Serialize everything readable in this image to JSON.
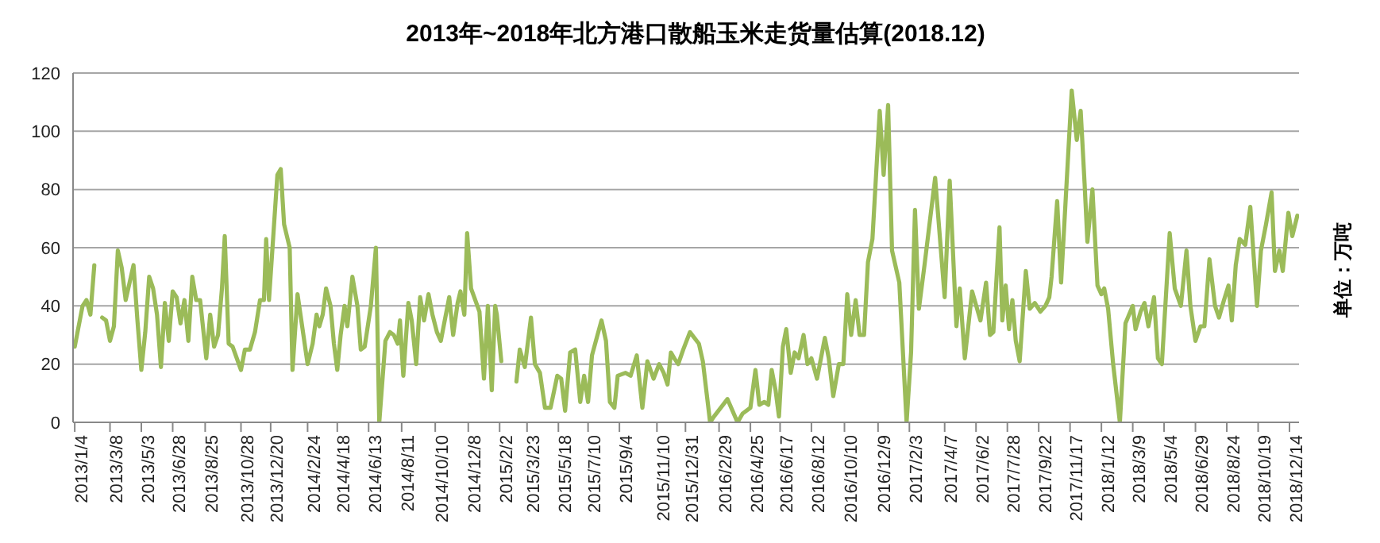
{
  "chart_data": {
    "type": "line",
    "title": "2013年~2018年北方港口散船玉米走货量估算(2018.12)",
    "ylabel": "单位：万吨",
    "xlim": [
      "2013-01-01",
      "2018-12-31"
    ],
    "ylim": [
      0,
      120
    ],
    "yticks": [
      0,
      20,
      40,
      60,
      80,
      100,
      120
    ],
    "xticks": [
      {
        "value": "2013-01-04",
        "label": "2013/1/4"
      },
      {
        "value": "2013-03-08",
        "label": "2013/3/8"
      },
      {
        "value": "2013-05-03",
        "label": "2013/5/3"
      },
      {
        "value": "2013-06-28",
        "label": "2013/6/28"
      },
      {
        "value": "2013-08-25",
        "label": "2013/8/25"
      },
      {
        "value": "2013-10-28",
        "label": "2013/10/28"
      },
      {
        "value": "2013-12-20",
        "label": "2013/12/20"
      },
      {
        "value": "2014-02-24",
        "label": "2014/2/24"
      },
      {
        "value": "2014-04-18",
        "label": "2014/4/18"
      },
      {
        "value": "2014-06-13",
        "label": "2014/6/13"
      },
      {
        "value": "2014-08-11",
        "label": "2014/8/11"
      },
      {
        "value": "2014-10-10",
        "label": "2014/10/10"
      },
      {
        "value": "2014-12-08",
        "label": "2014/12/8"
      },
      {
        "value": "2015-02-02",
        "label": "2015/2/2"
      },
      {
        "value": "2015-03-23",
        "label": "2015/3/23"
      },
      {
        "value": "2015-05-18",
        "label": "2015/5/18"
      },
      {
        "value": "2015-07-10",
        "label": "2015/7/10"
      },
      {
        "value": "2015-09-04",
        "label": "2015/9/4"
      },
      {
        "value": "2015-11-10",
        "label": "2015/11/10"
      },
      {
        "value": "2015-12-31",
        "label": "2015/12/31"
      },
      {
        "value": "2016-02-29",
        "label": "2016/2/29"
      },
      {
        "value": "2016-04-25",
        "label": "2016/4/25"
      },
      {
        "value": "2016-06-17",
        "label": "2016/6/17"
      },
      {
        "value": "2016-08-12",
        "label": "2016/8/12"
      },
      {
        "value": "2016-10-10",
        "label": "2016/10/10"
      },
      {
        "value": "2016-12-09",
        "label": "2016/12/9"
      },
      {
        "value": "2017-02-03",
        "label": "2017/2/3"
      },
      {
        "value": "2017-04-07",
        "label": "2017/4/7"
      },
      {
        "value": "2017-06-02",
        "label": "2017/6/2"
      },
      {
        "value": "2017-07-28",
        "label": "2017/7/28"
      },
      {
        "value": "2017-09-22",
        "label": "2017/9/22"
      },
      {
        "value": "2017-11-17",
        "label": "2017/11/17"
      },
      {
        "value": "2018-01-12",
        "label": "2018/1/12"
      },
      {
        "value": "2018-03-09",
        "label": "2018/3/9"
      },
      {
        "value": "2018-05-04",
        "label": "2018/5/4"
      },
      {
        "value": "2018-06-29",
        "label": "2018/6/29"
      },
      {
        "value": "2018-08-24",
        "label": "2018/8/24"
      },
      {
        "value": "2018-10-19",
        "label": "2018/10/19"
      },
      {
        "value": "2018-12-14",
        "label": "2018/12/14"
      }
    ],
    "grid": "y",
    "marker": "none",
    "line_style": "solid",
    "series": [
      {
        "color": "#9bbb59",
        "x": [
          "2013-01-04",
          "2013-01-18",
          "2013-01-25",
          "2013-02-01",
          "2013-02-08",
          "2013-02-15",
          "2013-02-22",
          "2013-03-01",
          "2013-03-08",
          "2013-03-15",
          "2013-03-22",
          "2013-03-29",
          "2013-04-05",
          "2013-04-12",
          "2013-04-19",
          "2013-04-26",
          "2013-05-03",
          "2013-05-10",
          "2013-05-17",
          "2013-05-24",
          "2013-05-31",
          "2013-06-07",
          "2013-06-14",
          "2013-06-21",
          "2013-06-28",
          "2013-07-05",
          "2013-07-12",
          "2013-07-19",
          "2013-07-26",
          "2013-08-02",
          "2013-08-09",
          "2013-08-16",
          "2013-08-27",
          "2013-09-03",
          "2013-09-10",
          "2013-09-17",
          "2013-09-24",
          "2013-09-29",
          "2013-10-06",
          "2013-10-13",
          "2013-10-28",
          "2013-11-04",
          "2013-11-13",
          "2013-11-22",
          "2013-12-01",
          "2013-12-08",
          "2013-12-12",
          "2013-12-17",
          "2014-01-01",
          "2014-01-07",
          "2014-01-13",
          "2014-01-23",
          "2014-01-28",
          "2014-02-06",
          "2014-02-24",
          "2014-03-05",
          "2014-03-12",
          "2014-03-17",
          "2014-03-23",
          "2014-03-29",
          "2014-04-06",
          "2014-04-12",
          "2014-04-18",
          "2014-04-24",
          "2014-05-01",
          "2014-05-06",
          "2014-05-15",
          "2014-05-24",
          "2014-05-30",
          "2014-06-06",
          "2014-06-17",
          "2014-06-26",
          "2014-07-02",
          "2014-07-13",
          "2014-07-21",
          "2014-07-28",
          "2014-08-04",
          "2014-08-08",
          "2014-08-14",
          "2014-08-23",
          "2014-08-29",
          "2014-09-06",
          "2014-09-13",
          "2014-09-20",
          "2014-09-28",
          "2014-10-05",
          "2014-10-13",
          "2014-10-20",
          "2014-11-04",
          "2014-11-11",
          "2014-11-19",
          "2014-11-24",
          "2014-12-01",
          "2014-12-06",
          "2014-12-13",
          "2014-12-28",
          "2015-01-05",
          "2015-01-12",
          "2015-01-19",
          "2015-01-25",
          "2015-01-28",
          "2015-02-05",
          "2015-02-20",
          "2015-03-04",
          "2015-03-10",
          "2015-03-19",
          "2015-03-30",
          "2015-04-06",
          "2015-04-15",
          "2015-04-24",
          "2015-05-04",
          "2015-05-16",
          "2015-05-23",
          "2015-05-30",
          "2015-06-08",
          "2015-06-17",
          "2015-06-26",
          "2015-07-03",
          "2015-07-10",
          "2015-07-17",
          "2015-07-24",
          "2015-08-03",
          "2015-08-11",
          "2015-08-18",
          "2015-08-26",
          "2015-09-01",
          "2015-09-15",
          "2015-09-24",
          "2015-10-05",
          "2015-10-15",
          "2015-10-24",
          "2015-11-04",
          "2015-11-14",
          "2015-11-22",
          "2015-11-29",
          "2015-12-05",
          "2015-12-11",
          "2015-12-18",
          "2015-12-27",
          "2016-01-08",
          "2016-01-24",
          "2016-01-31",
          "2016-02-13",
          "2016-02-20",
          "2016-03-15",
          "2016-04-02",
          "2016-04-11",
          "2016-04-25",
          "2016-05-04",
          "2016-05-11",
          "2016-05-20",
          "2016-05-27",
          "2016-06-02",
          "2016-06-09",
          "2016-06-15",
          "2016-06-22",
          "2016-06-28",
          "2016-07-06",
          "2016-07-13",
          "2016-07-20",
          "2016-07-29",
          "2016-08-05",
          "2016-08-12",
          "2016-08-22",
          "2016-09-05",
          "2016-09-12",
          "2016-09-20",
          "2016-09-30",
          "2016-10-08",
          "2016-10-15",
          "2016-10-22",
          "2016-10-30",
          "2016-11-06",
          "2016-11-14",
          "2016-11-21",
          "2016-11-29",
          "2016-12-12",
          "2016-12-19",
          "2016-12-27",
          "2017-01-03",
          "2017-01-16",
          "2017-01-29",
          "2017-02-06",
          "2017-02-13",
          "2017-02-20",
          "2017-03-02",
          "2017-03-21",
          "2017-04-07",
          "2017-04-16",
          "2017-04-28",
          "2017-05-04",
          "2017-05-13",
          "2017-05-26",
          "2017-06-10",
          "2017-06-20",
          "2017-06-27",
          "2017-07-03",
          "2017-07-14",
          "2017-07-19",
          "2017-07-25",
          "2017-07-31",
          "2017-08-06",
          "2017-08-12",
          "2017-08-19",
          "2017-08-30",
          "2017-09-06",
          "2017-09-15",
          "2017-09-25",
          "2017-10-04",
          "2017-10-11",
          "2017-10-15",
          "2017-10-25",
          "2017-11-01",
          "2017-11-20",
          "2017-11-29",
          "2017-12-06",
          "2017-12-13",
          "2017-12-18",
          "2017-12-27",
          "2018-01-05",
          "2018-01-12",
          "2018-01-17",
          "2018-01-24",
          "2018-02-02",
          "2018-02-14",
          "2018-02-24",
          "2018-03-09",
          "2018-03-14",
          "2018-03-23",
          "2018-03-30",
          "2018-04-06",
          "2018-04-16",
          "2018-04-23",
          "2018-04-30",
          "2018-05-14",
          "2018-05-23",
          "2018-06-03",
          "2018-06-13",
          "2018-06-20",
          "2018-06-29",
          "2018-07-08",
          "2018-07-15",
          "2018-07-24",
          "2018-08-03",
          "2018-08-10",
          "2018-08-19",
          "2018-08-27",
          "2018-09-02",
          "2018-09-09",
          "2018-09-16",
          "2018-09-26",
          "2018-10-05",
          "2018-10-17",
          "2018-10-24",
          "2018-11-02",
          "2018-11-12",
          "2018-11-18",
          "2018-11-26",
          "2018-12-02",
          "2018-12-12",
          "2018-12-19",
          "2018-12-28"
        ],
        "values": [
          26,
          40,
          42,
          37,
          54,
          null,
          36,
          35,
          28,
          33,
          59,
          53,
          42,
          48,
          54,
          35,
          18,
          31,
          50,
          46,
          37,
          19,
          41,
          28,
          45,
          43,
          34,
          42,
          28,
          50,
          42,
          42,
          22,
          37,
          26,
          30,
          46,
          64,
          27,
          26,
          18,
          25,
          25,
          31,
          42,
          42,
          63,
          42,
          85,
          87,
          68,
          60,
          18,
          44,
          20,
          27,
          37,
          33,
          37,
          46,
          40,
          27,
          18,
          30,
          40,
          33,
          50,
          40,
          25,
          26,
          40,
          60,
          0,
          28,
          31,
          30,
          27,
          35,
          16,
          41,
          35,
          20,
          43,
          35,
          44,
          37,
          31,
          28,
          43,
          30,
          41,
          45,
          37,
          65,
          46,
          38,
          15,
          40,
          11,
          40,
          37,
          21,
          null,
          14,
          25,
          19,
          36,
          20,
          17,
          5,
          5,
          16,
          15,
          4,
          24,
          25,
          7,
          16,
          7,
          23,
          28,
          35,
          28,
          7,
          5,
          16,
          17,
          16,
          23,
          5,
          21,
          15,
          20,
          17,
          13,
          24,
          22,
          20,
          25,
          31,
          27,
          21,
          0,
          2,
          8,
          0,
          3,
          5,
          18,
          6,
          7,
          6,
          18,
          11,
          2,
          26,
          32,
          17,
          24,
          22,
          30,
          20,
          22,
          15,
          29,
          22,
          9,
          20,
          20,
          44,
          30,
          42,
          30,
          30,
          55,
          63,
          107,
          85,
          109,
          59,
          48,
          0,
          24,
          73,
          39,
          54,
          84,
          43,
          83,
          33,
          46,
          22,
          45,
          35,
          48,
          30,
          31,
          67,
          35,
          47,
          32,
          42,
          28,
          21,
          52,
          39,
          41,
          38,
          40,
          43,
          50,
          76,
          48,
          114,
          97,
          107,
          82,
          62,
          80,
          47,
          44,
          46,
          39,
          20,
          0,
          34,
          40,
          32,
          38,
          41,
          33,
          43,
          22,
          20,
          65,
          46,
          40,
          59,
          40,
          28,
          33,
          33,
          56,
          40,
          36,
          42,
          47,
          35,
          54,
          63,
          61,
          74,
          40,
          59,
          68,
          79,
          52,
          59,
          52,
          72,
          64,
          71
        ]
      }
    ]
  }
}
